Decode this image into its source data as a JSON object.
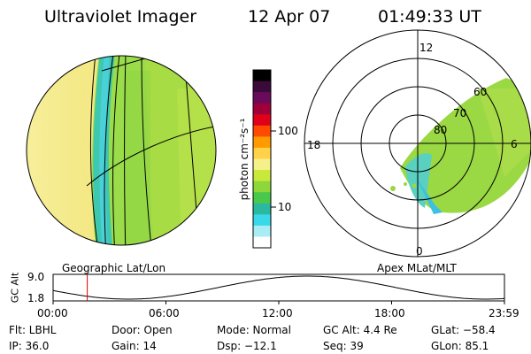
{
  "header": {
    "instrument": "Ultraviolet Imager",
    "date": "12 Apr 07",
    "time": "01:49:33 UT"
  },
  "colorbar": {
    "unit_label": "photon cm⁻²s⁻¹",
    "ticks": [
      "100",
      "10"
    ],
    "colors": [
      "#000000",
      "#3a0a3a",
      "#6a0a5a",
      "#a0003a",
      "#e0001a",
      "#ff4a00",
      "#ff9a00",
      "#ffd24a",
      "#f5f08a",
      "#c8e83a",
      "#8cd83a",
      "#4ac84a",
      "#2ab8a0",
      "#3ad8e8",
      "#a8ecf4",
      "#ffffff"
    ]
  },
  "left_panel": {
    "label": "Geographic Lat/Lon"
  },
  "right_panel": {
    "label": "Apex MLat/MLT",
    "mlt_labels": [
      "12",
      "18",
      "6",
      "0"
    ],
    "lat_labels": [
      "60",
      "70",
      "80"
    ]
  },
  "altitude_plot": {
    "ylabel": "GC Alt",
    "yticks": [
      "9.0",
      "1.8"
    ],
    "xticks": [
      "00:00",
      "06:00",
      "12:00",
      "18:00",
      "23:59"
    ],
    "marker_time": "01:49"
  },
  "info": {
    "filter": "Flt: LBHL",
    "ip": "IP: 36.0",
    "door": "Door: Open",
    "gain": "Gain: 14",
    "mode": "Mode: Normal",
    "dsp": "Dsp:  −12.1",
    "gc_alt": "GC Alt: 4.4 Re",
    "seq": "Seq: 39",
    "glat": "GLat:  −58.4",
    "glon": "GLon:  85.1"
  }
}
